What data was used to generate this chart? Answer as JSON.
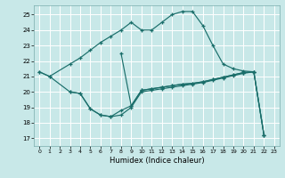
{
  "bg_color": "#c8e8e8",
  "grid_color": "#ffffff",
  "line_color": "#1a6e6a",
  "xlabel": "Humidex (Indice chaleur)",
  "xlim": [
    -0.5,
    23.5
  ],
  "ylim": [
    16.5,
    25.6
  ],
  "xticks": [
    0,
    1,
    2,
    3,
    4,
    5,
    6,
    7,
    8,
    9,
    10,
    11,
    12,
    13,
    14,
    15,
    16,
    17,
    18,
    19,
    20,
    21,
    22,
    23
  ],
  "yticks": [
    17,
    18,
    19,
    20,
    21,
    22,
    23,
    24,
    25
  ],
  "curve_upper_x": [
    0,
    1,
    3,
    4,
    5,
    6,
    7,
    8,
    9,
    10,
    11,
    12,
    13,
    14,
    15,
    16,
    17,
    18,
    19,
    20,
    21,
    22
  ],
  "curve_upper_y": [
    21.3,
    21.0,
    21.8,
    22.2,
    22.7,
    23.2,
    23.6,
    24.0,
    24.5,
    24.0,
    24.0,
    24.5,
    25.0,
    25.2,
    25.2,
    24.3,
    23.0,
    21.8,
    21.5,
    21.35,
    21.3,
    17.2
  ],
  "curve_lower_x": [
    0,
    1,
    3,
    4,
    5,
    6,
    7,
    8,
    9,
    10,
    11,
    12,
    13,
    14,
    15,
    16,
    17,
    18,
    19,
    20,
    21,
    22
  ],
  "curve_lower_y": [
    21.3,
    21.0,
    20.0,
    19.9,
    18.9,
    18.5,
    18.4,
    18.5,
    19.0,
    20.0,
    20.1,
    20.2,
    20.3,
    20.4,
    20.5,
    20.6,
    20.75,
    20.9,
    21.05,
    21.2,
    21.3,
    17.2
  ],
  "curve_mid_x": [
    3,
    4,
    5,
    6,
    7,
    8,
    9,
    10,
    11,
    12,
    13,
    14,
    15,
    16,
    17,
    18,
    19,
    20,
    21,
    22
  ],
  "curve_mid_y": [
    20.0,
    19.9,
    18.9,
    18.5,
    18.4,
    18.8,
    19.1,
    20.1,
    20.2,
    20.3,
    20.4,
    20.5,
    20.55,
    20.65,
    20.8,
    20.95,
    21.1,
    21.25,
    21.3,
    17.2
  ],
  "curve_spike_x": [
    8,
    9,
    10,
    11,
    12,
    13,
    14,
    15,
    16,
    17,
    18,
    19,
    20,
    21
  ],
  "curve_spike_y": [
    22.5,
    19.1,
    20.1,
    20.2,
    20.3,
    20.4,
    20.5,
    20.55,
    20.65,
    20.8,
    20.95,
    21.1,
    21.25,
    21.3
  ]
}
